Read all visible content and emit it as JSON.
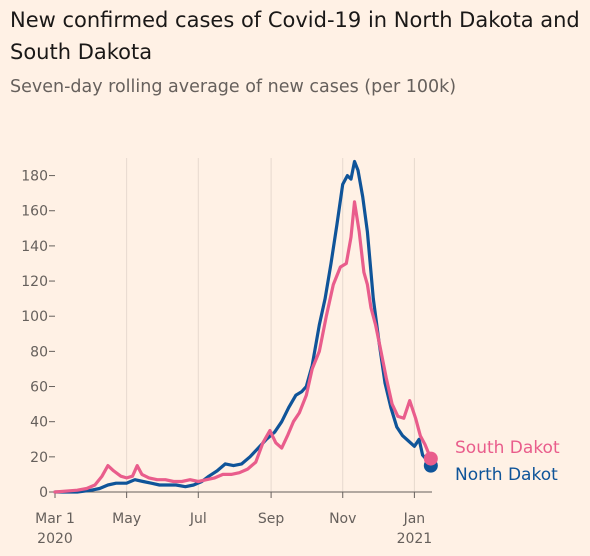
{
  "chart_data": {
    "type": "line",
    "title": "New confirmed cases of Covid-19 in North Dakota and South Dakota",
    "subtitle": "Seven-day rolling average of new cases (per 100k)",
    "xlabel": "",
    "ylabel": "",
    "x_tick_labels": [
      {
        "date": "2020-03-01",
        "label": "Mar 1",
        "sublabel": "2020"
      },
      {
        "date": "2020-05-01",
        "label": "May",
        "sublabel": ""
      },
      {
        "date": "2020-07-01",
        "label": "Jul",
        "sublabel": ""
      },
      {
        "date": "2020-09-01",
        "label": "Sep",
        "sublabel": ""
      },
      {
        "date": "2020-11-01",
        "label": "Nov",
        "sublabel": ""
      },
      {
        "date": "2021-01-01",
        "label": "Jan",
        "sublabel": "2021"
      }
    ],
    "y_ticks": [
      0,
      20,
      40,
      60,
      80,
      100,
      120,
      140,
      160,
      180
    ],
    "ylim": [
      0,
      190
    ],
    "xlim": [
      "2020-03-01",
      "2021-01-16"
    ],
    "grid": "vertical at x ticks",
    "series": [
      {
        "name": "North Dakot",
        "color": "#0f5499",
        "points": [
          [
            "2020-03-01",
            0
          ],
          [
            "2020-03-20",
            0
          ],
          [
            "2020-04-01",
            1
          ],
          [
            "2020-04-08",
            2
          ],
          [
            "2020-04-15",
            4
          ],
          [
            "2020-04-22",
            5
          ],
          [
            "2020-05-01",
            5
          ],
          [
            "2020-05-08",
            7
          ],
          [
            "2020-05-15",
            6
          ],
          [
            "2020-05-22",
            5
          ],
          [
            "2020-05-29",
            4
          ],
          [
            "2020-06-05",
            4
          ],
          [
            "2020-06-12",
            4
          ],
          [
            "2020-06-20",
            3
          ],
          [
            "2020-06-27",
            4
          ],
          [
            "2020-07-04",
            6
          ],
          [
            "2020-07-10",
            9
          ],
          [
            "2020-07-17",
            12
          ],
          [
            "2020-07-24",
            16
          ],
          [
            "2020-07-31",
            15
          ],
          [
            "2020-08-07",
            16
          ],
          [
            "2020-08-14",
            20
          ],
          [
            "2020-08-21",
            25
          ],
          [
            "2020-08-28",
            30
          ],
          [
            "2020-09-04",
            34
          ],
          [
            "2020-09-10",
            40
          ],
          [
            "2020-09-16",
            48
          ],
          [
            "2020-09-22",
            55
          ],
          [
            "2020-09-27",
            57
          ],
          [
            "2020-10-01",
            60
          ],
          [
            "2020-10-06",
            72
          ],
          [
            "2020-10-12",
            95
          ],
          [
            "2020-10-17",
            110
          ],
          [
            "2020-10-22",
            130
          ],
          [
            "2020-10-27",
            152
          ],
          [
            "2020-11-01",
            175
          ],
          [
            "2020-11-05",
            180
          ],
          [
            "2020-11-08",
            178
          ],
          [
            "2020-11-11",
            188
          ],
          [
            "2020-11-14",
            183
          ],
          [
            "2020-11-18",
            168
          ],
          [
            "2020-11-22",
            148
          ],
          [
            "2020-11-27",
            110
          ],
          [
            "2020-12-02",
            85
          ],
          [
            "2020-12-07",
            62
          ],
          [
            "2020-12-12",
            48
          ],
          [
            "2020-12-17",
            37
          ],
          [
            "2020-12-22",
            32
          ],
          [
            "2020-12-27",
            29
          ],
          [
            "2021-01-01",
            26
          ],
          [
            "2021-01-05",
            30
          ],
          [
            "2021-01-08",
            21
          ],
          [
            "2021-01-12",
            18
          ],
          [
            "2021-01-15",
            15
          ]
        ],
        "end_value": 15
      },
      {
        "name": "South Dakot",
        "color": "#e95d8c",
        "points": [
          [
            "2020-03-01",
            0
          ],
          [
            "2020-03-20",
            1
          ],
          [
            "2020-03-28",
            2
          ],
          [
            "2020-04-04",
            4
          ],
          [
            "2020-04-10",
            9
          ],
          [
            "2020-04-15",
            15
          ],
          [
            "2020-04-20",
            12
          ],
          [
            "2020-04-26",
            9
          ],
          [
            "2020-05-01",
            8
          ],
          [
            "2020-05-06",
            9
          ],
          [
            "2020-05-10",
            15
          ],
          [
            "2020-05-14",
            10
          ],
          [
            "2020-05-20",
            8
          ],
          [
            "2020-05-27",
            7
          ],
          [
            "2020-06-03",
            7
          ],
          [
            "2020-06-10",
            6
          ],
          [
            "2020-06-17",
            6
          ],
          [
            "2020-06-24",
            7
          ],
          [
            "2020-07-01",
            6
          ],
          [
            "2020-07-08",
            7
          ],
          [
            "2020-07-15",
            8
          ],
          [
            "2020-07-22",
            10
          ],
          [
            "2020-07-29",
            10
          ],
          [
            "2020-08-05",
            11
          ],
          [
            "2020-08-12",
            13
          ],
          [
            "2020-08-19",
            17
          ],
          [
            "2020-08-25",
            28
          ],
          [
            "2020-08-31",
            35
          ],
          [
            "2020-09-05",
            28
          ],
          [
            "2020-09-10",
            25
          ],
          [
            "2020-09-15",
            32
          ],
          [
            "2020-09-20",
            40
          ],
          [
            "2020-09-25",
            45
          ],
          [
            "2020-10-01",
            55
          ],
          [
            "2020-10-06",
            70
          ],
          [
            "2020-10-12",
            80
          ],
          [
            "2020-10-18",
            100
          ],
          [
            "2020-10-24",
            118
          ],
          [
            "2020-10-30",
            128
          ],
          [
            "2020-11-04",
            130
          ],
          [
            "2020-11-08",
            145
          ],
          [
            "2020-11-11",
            165
          ],
          [
            "2020-11-15",
            148
          ],
          [
            "2020-11-19",
            125
          ],
          [
            "2020-11-22",
            118
          ],
          [
            "2020-11-25",
            105
          ],
          [
            "2020-11-29",
            95
          ],
          [
            "2020-12-03",
            82
          ],
          [
            "2020-12-08",
            65
          ],
          [
            "2020-12-13",
            50
          ],
          [
            "2020-12-18",
            43
          ],
          [
            "2020-12-23",
            42
          ],
          [
            "2020-12-28",
            52
          ],
          [
            "2021-01-02",
            42
          ],
          [
            "2021-01-06",
            32
          ],
          [
            "2021-01-10",
            27
          ],
          [
            "2021-01-15",
            19
          ]
        ],
        "end_value": 19
      }
    ]
  }
}
